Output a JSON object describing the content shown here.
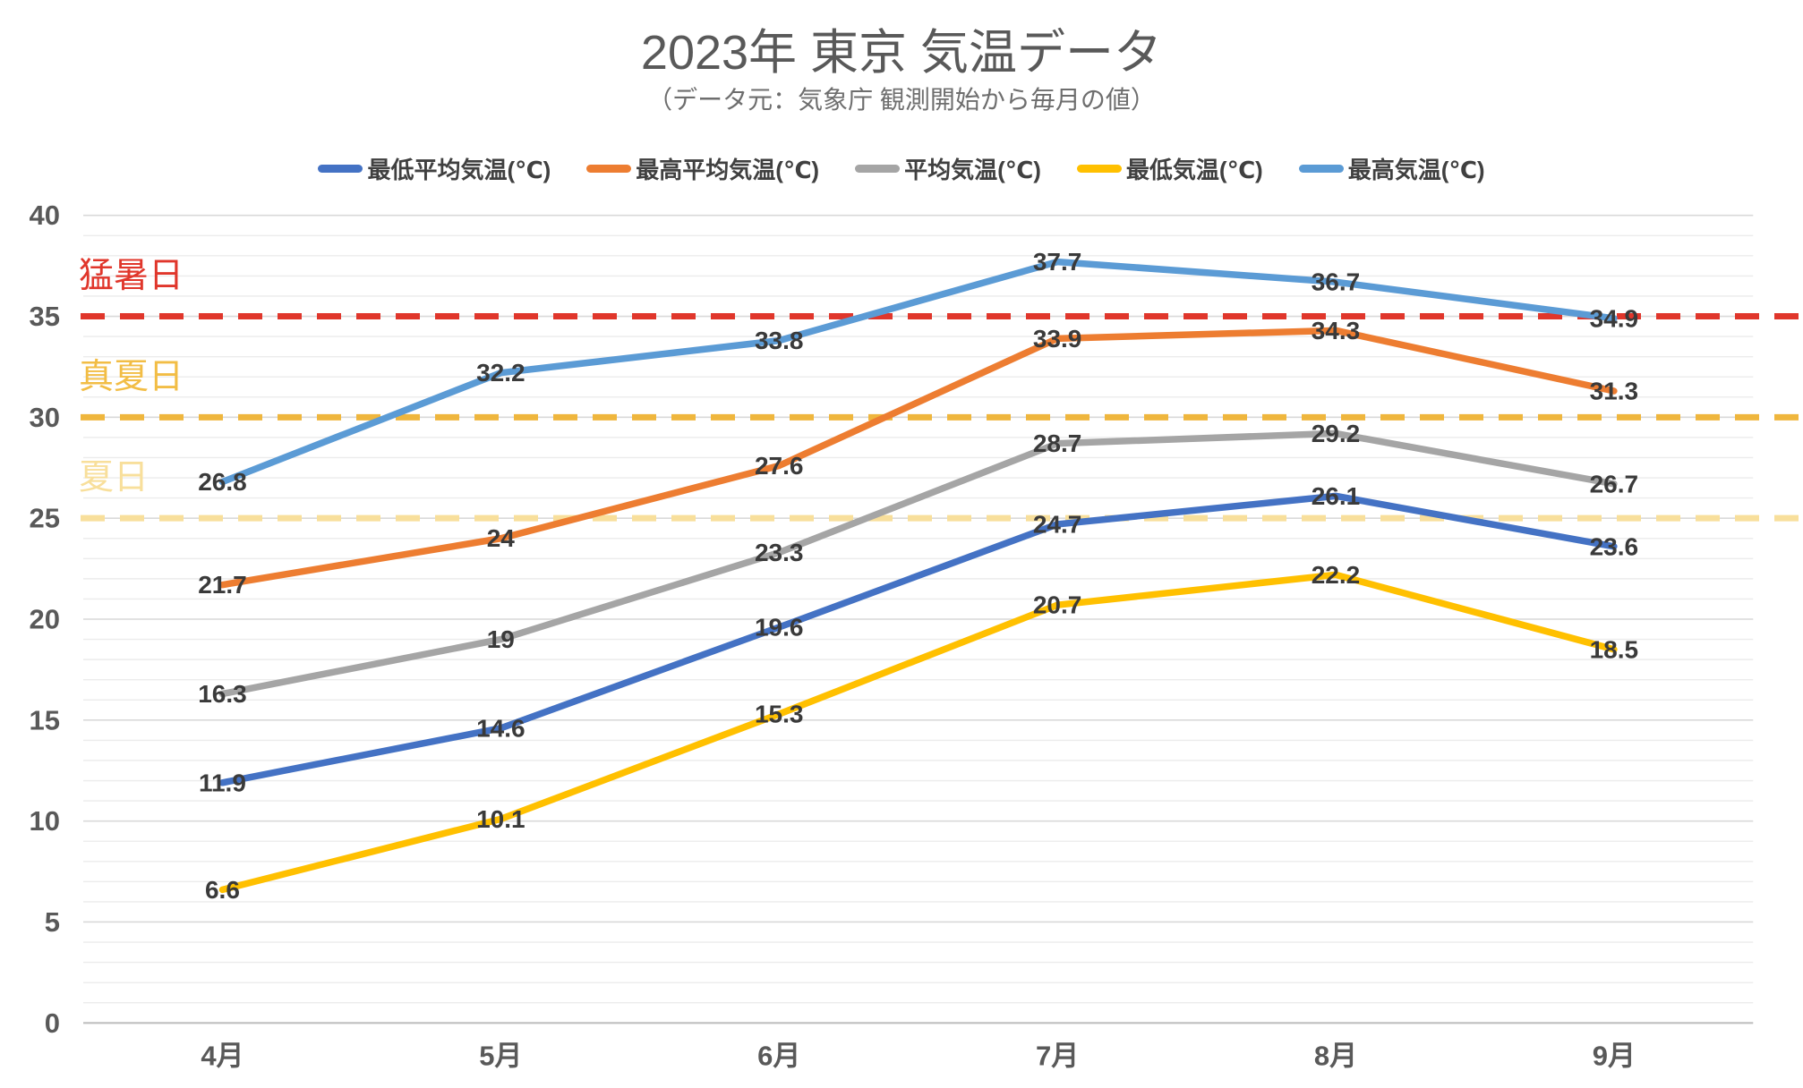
{
  "chart_data": {
    "type": "line",
    "title": "2023年 東京 気温データ",
    "subtitle": "（データ元：気象庁 観測開始から毎月の値）",
    "categories": [
      "4月",
      "5月",
      "6月",
      "7月",
      "8月",
      "9月"
    ],
    "series": [
      {
        "name": "最低平均気温(℃)",
        "color": "#4472C4",
        "values": [
          11.9,
          14.6,
          19.6,
          24.7,
          26.1,
          23.6
        ]
      },
      {
        "name": "最高平均気温(℃)",
        "color": "#ED7D31",
        "values": [
          21.7,
          24,
          27.6,
          33.9,
          34.3,
          31.3
        ]
      },
      {
        "name": "平均気温(℃)",
        "color": "#A5A5A5",
        "values": [
          16.3,
          19,
          23.3,
          28.7,
          29.2,
          26.7
        ]
      },
      {
        "name": "最低気温(℃)",
        "color": "#FFC000",
        "values": [
          6.6,
          10.1,
          15.3,
          20.7,
          22.2,
          18.5
        ]
      },
      {
        "name": "最高気温(℃)",
        "color": "#5B9BD5",
        "values": [
          26.8,
          32.2,
          33.8,
          37.7,
          36.7,
          34.9
        ]
      }
    ],
    "reference_lines": [
      {
        "label": "猛暑日",
        "value": 35,
        "color": "#E0362B",
        "label_color": "#E0362B"
      },
      {
        "label": "真夏日",
        "value": 30,
        "color": "#EFB63D",
        "label_color": "#F2BD45"
      },
      {
        "label": "夏日",
        "value": 25,
        "color": "#F8DF9B",
        "label_color": "#F8DF9B"
      }
    ],
    "y_axis": {
      "min": 0,
      "max": 40,
      "major_step": 5,
      "minor_step": 1,
      "tick_labels": [
        "0",
        "5",
        "10",
        "15",
        "20",
        "25",
        "30",
        "35",
        "40"
      ]
    },
    "legend_position": "top",
    "grid": true
  }
}
